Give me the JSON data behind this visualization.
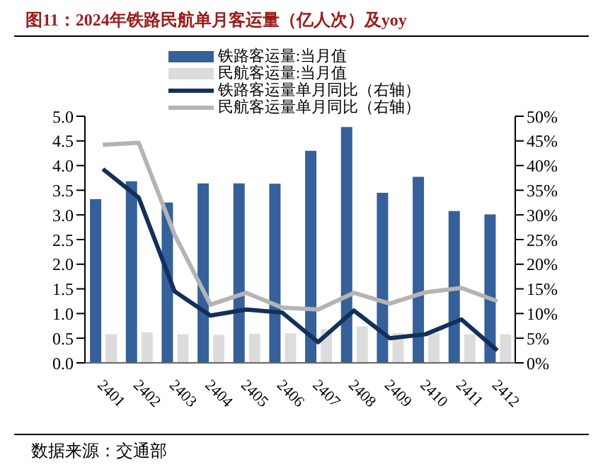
{
  "chart_data": {
    "type": "bar",
    "title": "图11：2024年铁路民航单月客运量（亿人次）及yoy",
    "categories": [
      "2401",
      "2402",
      "2403",
      "2404",
      "2405",
      "2406",
      "2407",
      "2408",
      "2409",
      "2410",
      "2411",
      "2412"
    ],
    "series": [
      {
        "name": "铁路客运量:当月值",
        "color": "#35609a",
        "values": [
          3.32,
          3.68,
          3.25,
          3.64,
          3.64,
          3.63,
          4.3,
          4.78,
          3.45,
          3.77,
          3.08,
          3.01
        ]
      },
      {
        "name": "民航客运量:当月值",
        "color": "#dcdcdc",
        "values": [
          0.58,
          0.62,
          0.58,
          0.57,
          0.59,
          0.6,
          0.68,
          0.74,
          0.6,
          0.6,
          0.58,
          0.58
        ]
      },
      {
        "name": "铁路客运量单月同比（右轴）",
        "type": "line",
        "axis": "y2",
        "color": "#14305a",
        "values": [
          39.3,
          33.5,
          14.5,
          9.6,
          10.8,
          10.2,
          4.2,
          10.6,
          5.0,
          5.8,
          8.8,
          2.5
        ]
      },
      {
        "name": "民航客运量单月同比（右轴）",
        "type": "line",
        "axis": "y2",
        "color": "#b4b4b4",
        "values": [
          44.2,
          44.6,
          26.0,
          11.8,
          14.2,
          11.2,
          10.8,
          14.2,
          12.0,
          14.3,
          15.2,
          12.5
        ]
      }
    ],
    "ylim": [
      0,
      5
    ],
    "yticks": [
      {
        "value": 0,
        "label": "0.0"
      },
      {
        "value": 0.5,
        "label": "0.5"
      },
      {
        "value": 1,
        "label": "1.0"
      },
      {
        "value": 1.5,
        "label": "1.5"
      },
      {
        "value": 2,
        "label": "2.0"
      },
      {
        "value": 2.5,
        "label": "2.5"
      },
      {
        "value": 3,
        "label": "3.0"
      },
      {
        "value": 3.5,
        "label": "3.5"
      },
      {
        "value": 4,
        "label": "4.0"
      },
      {
        "value": 4.5,
        "label": "4.5"
      },
      {
        "value": 5,
        "label": "5.0"
      }
    ],
    "y2lim": [
      0,
      50
    ],
    "y2ticks": [
      {
        "value": 0,
        "label": "0%"
      },
      {
        "value": 5,
        "label": "5%"
      },
      {
        "value": 10,
        "label": "10%"
      },
      {
        "value": 15,
        "label": "15%"
      },
      {
        "value": 20,
        "label": "20%"
      },
      {
        "value": 25,
        "label": "25%"
      },
      {
        "value": 30,
        "label": "30%"
      },
      {
        "value": 35,
        "label": "35%"
      },
      {
        "value": 40,
        "label": "40%"
      },
      {
        "value": 45,
        "label": "45%"
      },
      {
        "value": 50,
        "label": "50%"
      }
    ],
    "legend": "top",
    "grid": false,
    "marker": "none",
    "line_style": "solid",
    "annotations": [
      "数据来源：交通部"
    ]
  }
}
